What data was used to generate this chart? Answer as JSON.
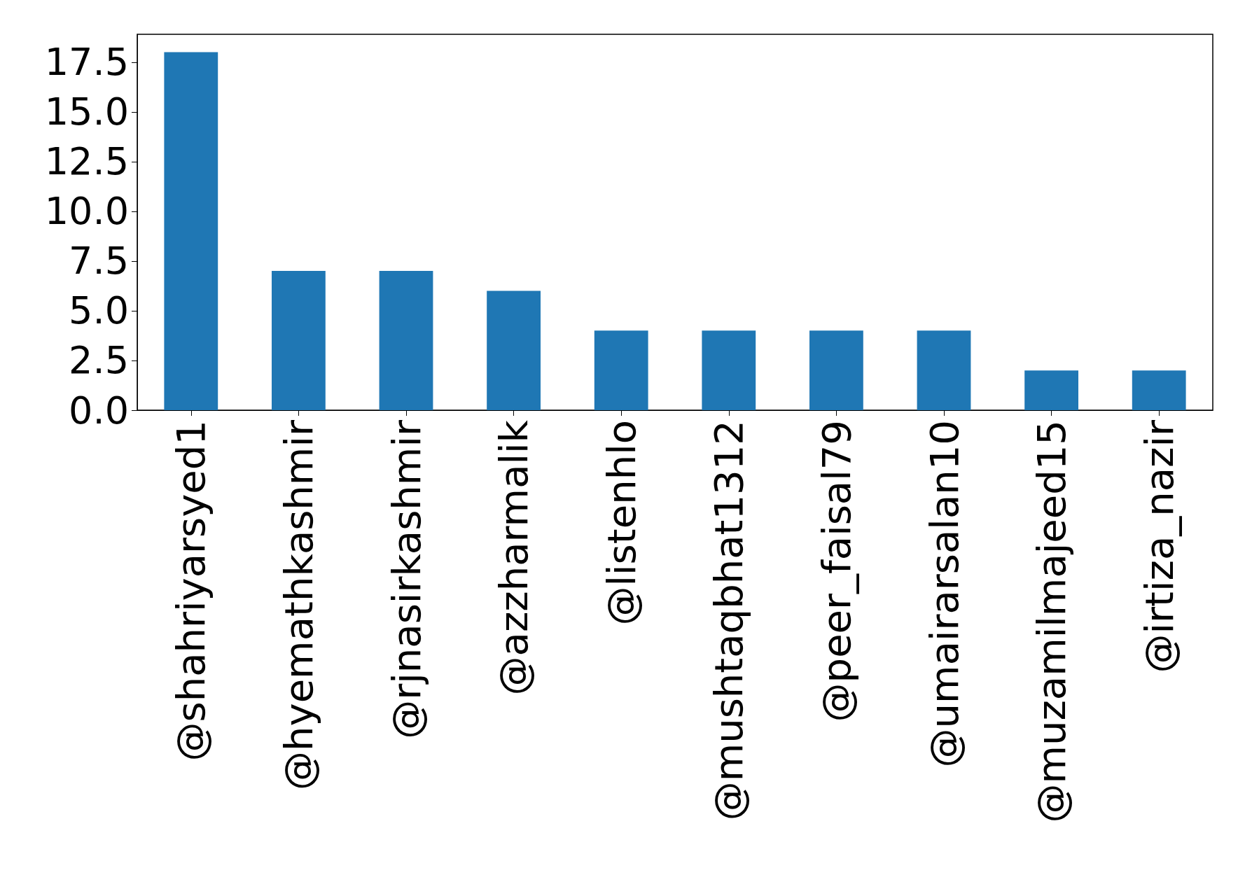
{
  "chart_data": {
    "type": "bar",
    "categories": [
      "@shahriyarsyed1",
      "@hyemathkashmir",
      "@rjnasirkashmir",
      "@azzharmalik",
      "@listenhlo",
      "@mushtaqbhat1312",
      "@peer_faisal79",
      "@umairarsalan10",
      "@muzamilmajeed15",
      "@irtiza_nazir"
    ],
    "values": [
      18,
      7,
      7,
      6,
      4,
      4,
      4,
      4,
      2,
      2
    ],
    "color": "#1f77b4",
    "ylim": [
      0,
      18.9
    ],
    "yticks": [
      {
        "value": 0,
        "label": "0.0"
      },
      2.5,
      {
        "value": 5,
        "label": "5.0"
      },
      7.5,
      {
        "value": 10,
        "label": "10.0"
      },
      12.5,
      {
        "value": 15,
        "label": "15.0"
      },
      17.5
    ],
    "grid": false
  }
}
